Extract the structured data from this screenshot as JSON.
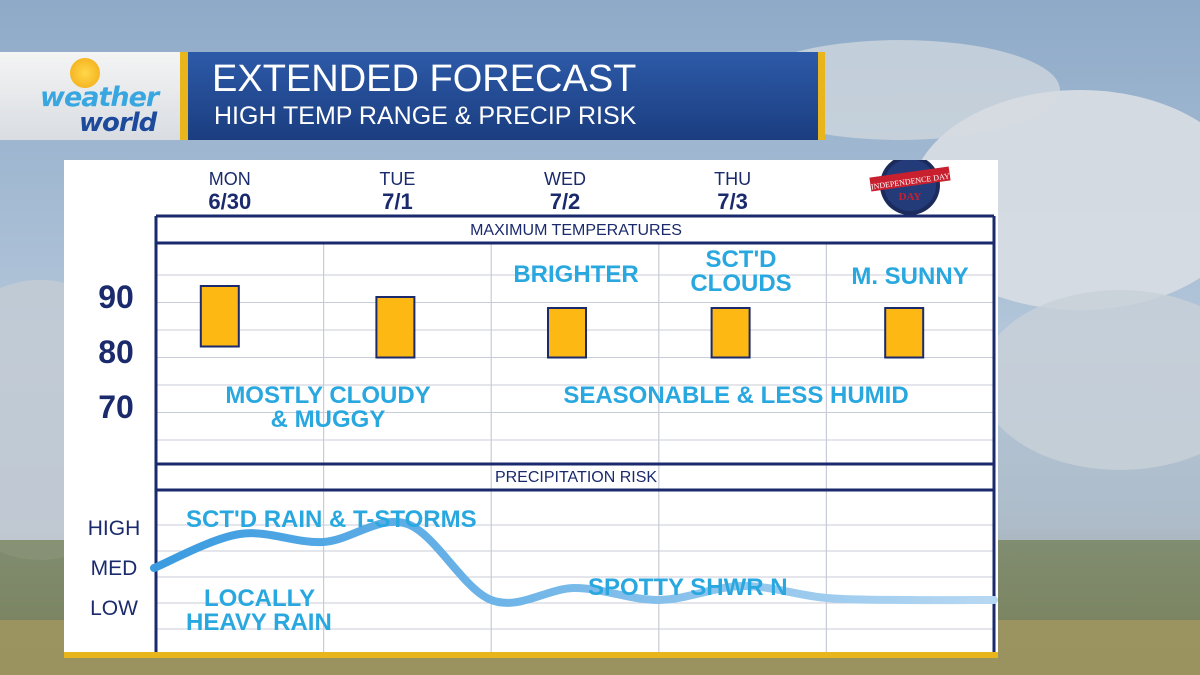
{
  "brand": {
    "line1": "weather",
    "line2": "world"
  },
  "header": {
    "title": "EXTENDED FORECAST",
    "subtitle": "HIGH TEMP RANGE & PRECIP RISK"
  },
  "badge": {
    "text": "INDEPENDENCE DAY",
    "icon": "independence-day-badge-icon"
  },
  "colors": {
    "accent_gold": "#e9b51c",
    "title_blue": "#1f4690",
    "navy": "#1a2a6c",
    "text_cyan": "#29a8e0",
    "bar_fill": "#fdb813",
    "line_blue": "#3a9be0"
  },
  "chart_data": [
    {
      "type": "bar",
      "title": "MAXIMUM TEMPERATURES",
      "days": [
        {
          "dow": "MON",
          "date": "6/30"
        },
        {
          "dow": "TUE",
          "date": "7/1"
        },
        {
          "dow": "WED",
          "date": "7/2"
        },
        {
          "dow": "THU",
          "date": "7/3"
        },
        {
          "dow": "",
          "date": ""
        }
      ],
      "y_ticks": [
        "90",
        "80",
        "70"
      ],
      "range": [
        [
          81,
          92
        ],
        [
          79,
          90
        ],
        [
          79,
          88
        ],
        [
          79,
          88
        ],
        [
          79,
          88
        ]
      ],
      "annotations": [
        "MOSTLY CLOUDY",
        "& MUGGY",
        "BRIGHTER",
        "SCT'D",
        "CLOUDS",
        "M. SUNNY",
        "SEASONABLE & LESS HUMID"
      ]
    },
    {
      "type": "line",
      "title": "PRECIPITATION RISK",
      "y_ticks": [
        "HIGH",
        "MED",
        "LOW"
      ],
      "x": [
        0,
        0.5,
        1,
        1.5,
        2,
        2.5,
        3,
        3.5,
        4,
        4.5,
        5
      ],
      "values": [
        1.0,
        1.85,
        1.65,
        2.1,
        0.2,
        0.5,
        0.2,
        0.55,
        0.25,
        0.2,
        0.2
      ],
      "annotations": [
        "SCT'D RAIN & T-STORMS",
        "LOCALLY",
        "HEAVY RAIN",
        "SPOTTY SHWR N"
      ]
    }
  ]
}
